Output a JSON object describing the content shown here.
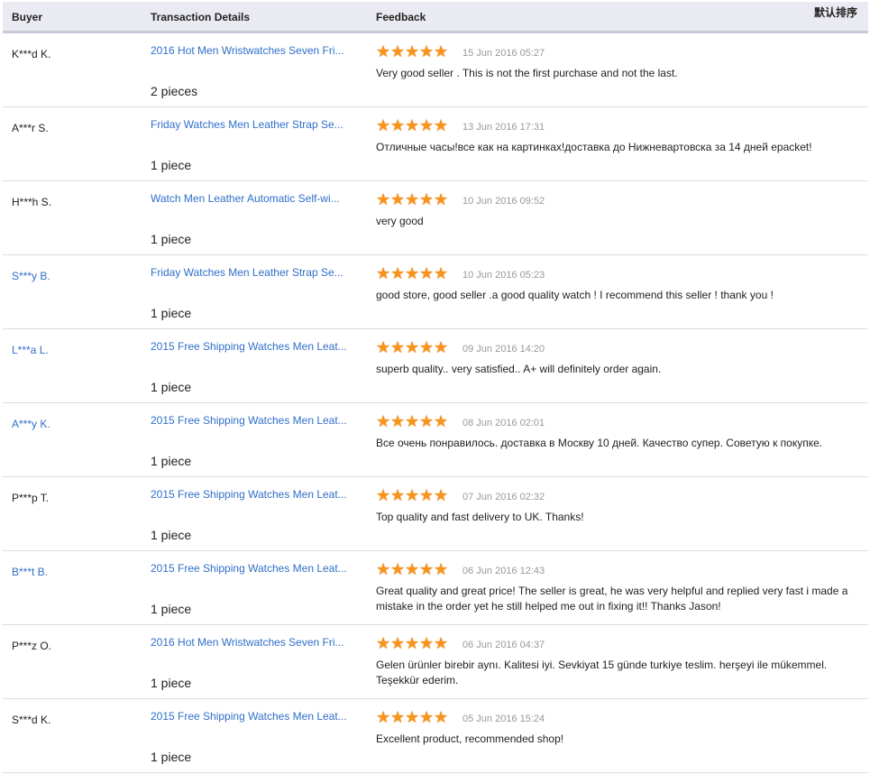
{
  "header": {
    "buyer": "Buyer",
    "transaction": "Transaction Details",
    "feedback": "Feedback",
    "sort": "默认排序"
  },
  "colors": {
    "link": "#2f6fc8",
    "star": "#f7941d"
  },
  "rows": [
    {
      "buyer": "K***d K.",
      "buyer_link": false,
      "product": "2016 Hot Men Wristwatches Seven Fri...",
      "qty": "2 pieces",
      "rating": 5,
      "date": "15 Jun 2016 05:27",
      "feedback": "Very good seller . This is not the first purchase and not the last."
    },
    {
      "buyer": "A***r S.",
      "buyer_link": false,
      "product": "Friday Watches Men Leather Strap Se...",
      "qty": "1 piece",
      "rating": 5,
      "date": "13 Jun 2016 17:31",
      "feedback": "Отличные часы!все как на картинках!доставка до Нижневартовска за 14 дней epacket!"
    },
    {
      "buyer": "H***h S.",
      "buyer_link": false,
      "product": "Watch Men Leather Automatic Self-wi...",
      "qty": "1 piece",
      "rating": 5,
      "date": "10 Jun 2016 09:52",
      "feedback": "very good"
    },
    {
      "buyer": "S***y B.",
      "buyer_link": true,
      "product": "Friday Watches Men Leather Strap Se...",
      "qty": "1 piece",
      "rating": 5,
      "date": "10 Jun 2016 05:23",
      "feedback": "good store, good seller .a good quality watch ! I recommend this seller ! thank you !"
    },
    {
      "buyer": "L***a L.",
      "buyer_link": true,
      "product": "2015 Free Shipping Watches Men Leat...",
      "qty": "1 piece",
      "rating": 5,
      "date": "09 Jun 2016 14:20",
      "feedback": "superb quality.. very satisfied.. A+ will definitely order again."
    },
    {
      "buyer": "A***y K.",
      "buyer_link": true,
      "product": "2015 Free Shipping Watches Men Leat...",
      "qty": "1 piece",
      "rating": 5,
      "date": "08 Jun 2016 02:01",
      "feedback": "Все очень понравилось. доставка в Москву 10 дней. Качество супер. Советую к покупке."
    },
    {
      "buyer": "P***p T.",
      "buyer_link": false,
      "product": "2015 Free Shipping Watches Men Leat...",
      "qty": "1 piece",
      "rating": 5,
      "date": "07 Jun 2016 02:32",
      "feedback": "Top quality and fast delivery to UK. Thanks!"
    },
    {
      "buyer": "B***t B.",
      "buyer_link": true,
      "product": "2015 Free Shipping Watches Men Leat...",
      "qty": "1 piece",
      "rating": 5,
      "date": "06 Jun 2016 12:43",
      "feedback": "Great quality and great price! The seller is great, he was very helpful and replied very fast i made a mistake in the order yet he still helped me out in fixing it!! Thanks Jason!"
    },
    {
      "buyer": "P***z O.",
      "buyer_link": false,
      "product": "2016 Hot Men Wristwatches Seven Fri...",
      "qty": "1 piece",
      "rating": 5,
      "date": "06 Jun 2016 04:37",
      "feedback": "Gelen ürünler birebir aynı. Kalitesi iyi. Sevkiyat 15 günde turkiye teslim. herşeyi ile mükemmel. Teşekkür ederim."
    },
    {
      "buyer": "S***d K.",
      "buyer_link": false,
      "product": "2015 Free Shipping Watches Men Leat...",
      "qty": "1 piece",
      "rating": 5,
      "date": "05 Jun 2016 15:24",
      "feedback": "Excellent product, recommended shop!"
    }
  ]
}
